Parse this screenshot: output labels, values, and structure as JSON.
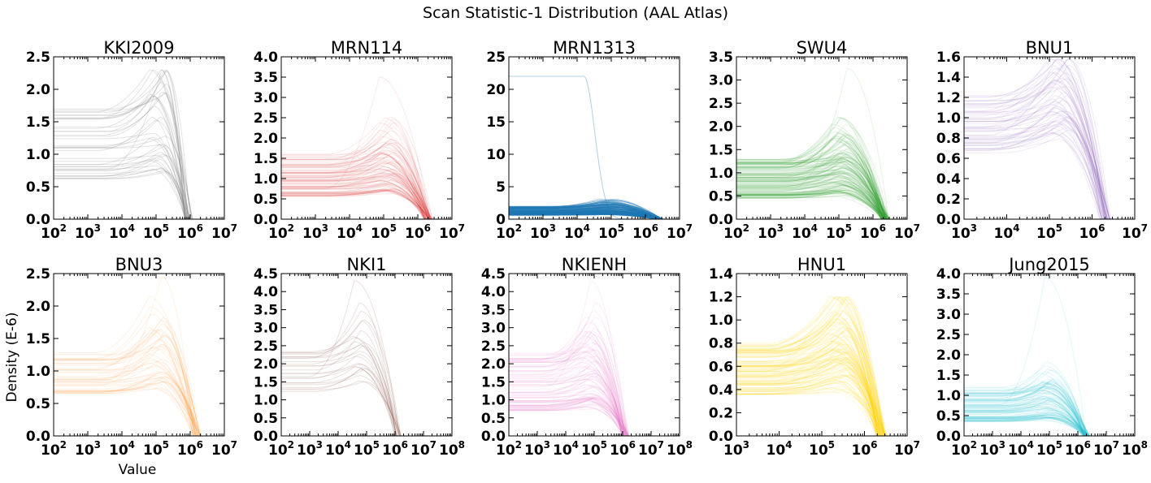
{
  "figure": {
    "title": "Scan Statistic-1 Distribution (AAL Atlas)",
    "ylabel": "Density (E-6)",
    "xlabel": "Value"
  },
  "chart_data": [
    {
      "type": "line",
      "title": "KKI2009",
      "color": "#808080",
      "xscale": "log",
      "xlim": [
        2,
        7
      ],
      "xticks": [
        2,
        3,
        4,
        5,
        6,
        7
      ],
      "ylim": [
        0,
        2.5
      ],
      "yticks": [
        "0.0",
        "0.5",
        "1.0",
        "1.5",
        "2.0",
        "2.5"
      ],
      "n_curves": 40,
      "plateau_range": [
        0.6,
        1.7
      ],
      "peak_x": 5.05,
      "peak_max": 2.3,
      "cutoff_x": 5.95,
      "alpha": 0.22
    },
    {
      "type": "line",
      "title": "MRN114",
      "color": "#d62728",
      "xscale": "log",
      "xlim": [
        2,
        7
      ],
      "xticks": [
        2,
        3,
        4,
        5,
        6,
        7
      ],
      "ylim": [
        0,
        4.0
      ],
      "yticks": [
        "0.0",
        "0.5",
        "1.0",
        "1.5",
        "2.0",
        "2.5",
        "3.0",
        "3.5",
        "4.0"
      ],
      "n_curves": 100,
      "plateau_range": [
        0.55,
        1.6
      ],
      "peak_x": 5.05,
      "peak_max": 3.5,
      "cutoff_x": 6.3,
      "alpha": 0.1
    },
    {
      "type": "line",
      "title": "MRN1313",
      "color": "#1f77b4",
      "xscale": "log",
      "xlim": [
        2,
        7
      ],
      "xticks": [
        2,
        3,
        4,
        5,
        6,
        7
      ],
      "ylim": [
        0,
        25
      ],
      "yticks": [
        "0",
        "5",
        "10",
        "15",
        "20",
        "25"
      ],
      "n_curves": 150,
      "plateau_range": [
        0.6,
        2.0
      ],
      "peak_x": 4.8,
      "peak_max": 3.5,
      "cutoff_x": 6.4,
      "alpha": 0.35,
      "outlier_level": 22
    },
    {
      "type": "line",
      "title": "SWU4",
      "color": "#2ca02c",
      "xscale": "log",
      "xlim": [
        2,
        7
      ],
      "xticks": [
        2,
        3,
        4,
        5,
        6,
        7
      ],
      "ylim": [
        0,
        3.5
      ],
      "yticks": [
        "0.0",
        "0.5",
        "1.0",
        "1.5",
        "2.0",
        "2.5",
        "3.0",
        "3.5"
      ],
      "n_curves": 150,
      "plateau_range": [
        0.45,
        1.3
      ],
      "peak_x": 5.0,
      "peak_max": 3.25,
      "cutoff_x": 6.35,
      "alpha": 0.12
    },
    {
      "type": "line",
      "title": "BNU1",
      "color": "#9467bd",
      "xscale": "log",
      "xlim": [
        3,
        7
      ],
      "xticks": [
        3,
        4,
        5,
        6,
        7
      ],
      "ylim": [
        0,
        1.6
      ],
      "yticks": [
        "0.0",
        "0.2",
        "0.4",
        "0.6",
        "0.8",
        "1.0",
        "1.2",
        "1.4",
        "1.6"
      ],
      "n_curves": 60,
      "plateau_range": [
        0.65,
        1.25
      ],
      "peak_x": 5.2,
      "peak_max": 1.58,
      "cutoff_x": 6.3,
      "alpha": 0.14
    },
    {
      "type": "line",
      "title": "BNU3",
      "color": "#ff7f0e",
      "xscale": "log",
      "xlim": [
        2,
        7
      ],
      "xticks": [
        2,
        3,
        4,
        5,
        6,
        7
      ],
      "ylim": [
        0,
        2.5
      ],
      "yticks": [
        "0.0",
        "0.5",
        "1.0",
        "1.5",
        "2.0",
        "2.5"
      ],
      "n_curves": 50,
      "plateau_range": [
        0.65,
        1.3
      ],
      "peak_x": 5.0,
      "peak_max": 2.45,
      "cutoff_x": 6.2,
      "alpha": 0.1
    },
    {
      "type": "line",
      "title": "NKI1",
      "color": "#8c564b",
      "xscale": "log",
      "xlim": [
        2,
        8
      ],
      "xticks": [
        2,
        3,
        4,
        5,
        6,
        7,
        8
      ],
      "ylim": [
        0,
        4.5
      ],
      "yticks": [
        "0.0",
        "0.5",
        "1.0",
        "1.5",
        "2.0",
        "2.5",
        "3.0",
        "3.5",
        "4.0",
        "4.5"
      ],
      "n_curves": 25,
      "plateau_range": [
        1.2,
        2.4
      ],
      "peak_x": 4.7,
      "peak_max": 4.3,
      "cutoff_x": 6.1,
      "alpha": 0.18
    },
    {
      "type": "line",
      "title": "NKIENH",
      "color": "#e377c2",
      "xscale": "log",
      "xlim": [
        2,
        8
      ],
      "xticks": [
        2,
        3,
        4,
        5,
        6,
        7,
        8
      ],
      "ylim": [
        0,
        4.5
      ],
      "yticks": [
        "0.0",
        "0.5",
        "1.0",
        "1.5",
        "2.0",
        "2.5",
        "3.0",
        "3.5",
        "4.0",
        "4.5"
      ],
      "n_curves": 90,
      "plateau_range": [
        0.7,
        2.3
      ],
      "peak_x": 4.8,
      "peak_max": 4.3,
      "cutoff_x": 6.1,
      "alpha": 0.12
    },
    {
      "type": "line",
      "title": "HNU1",
      "color": "#ffd700",
      "xscale": "log",
      "xlim": [
        3,
        7
      ],
      "xticks": [
        3,
        4,
        5,
        6,
        7
      ],
      "ylim": [
        0,
        1.4
      ],
      "yticks": [
        "0.0",
        "0.2",
        "0.4",
        "0.6",
        "0.8",
        "1.0",
        "1.2",
        "1.4"
      ],
      "n_curves": 120,
      "plateau_range": [
        0.35,
        0.8
      ],
      "peak_x": 5.4,
      "peak_max": 1.2,
      "cutoff_x": 6.4,
      "alpha": 0.14
    },
    {
      "type": "line",
      "title": "Jung2015",
      "color": "#17becf",
      "xscale": "log",
      "xlim": [
        2,
        8
      ],
      "xticks": [
        2,
        3,
        4,
        5,
        6,
        7,
        8
      ],
      "ylim": [
        0,
        4.0
      ],
      "yticks": [
        "0.0",
        "0.5",
        "1.0",
        "1.5",
        "2.0",
        "2.5",
        "3.0",
        "3.5",
        "4.0"
      ],
      "n_curves": 100,
      "plateau_range": [
        0.35,
        1.2
      ],
      "peak_x": 4.85,
      "peak_max": 3.9,
      "cutoff_x": 6.3,
      "alpha": 0.12
    }
  ]
}
